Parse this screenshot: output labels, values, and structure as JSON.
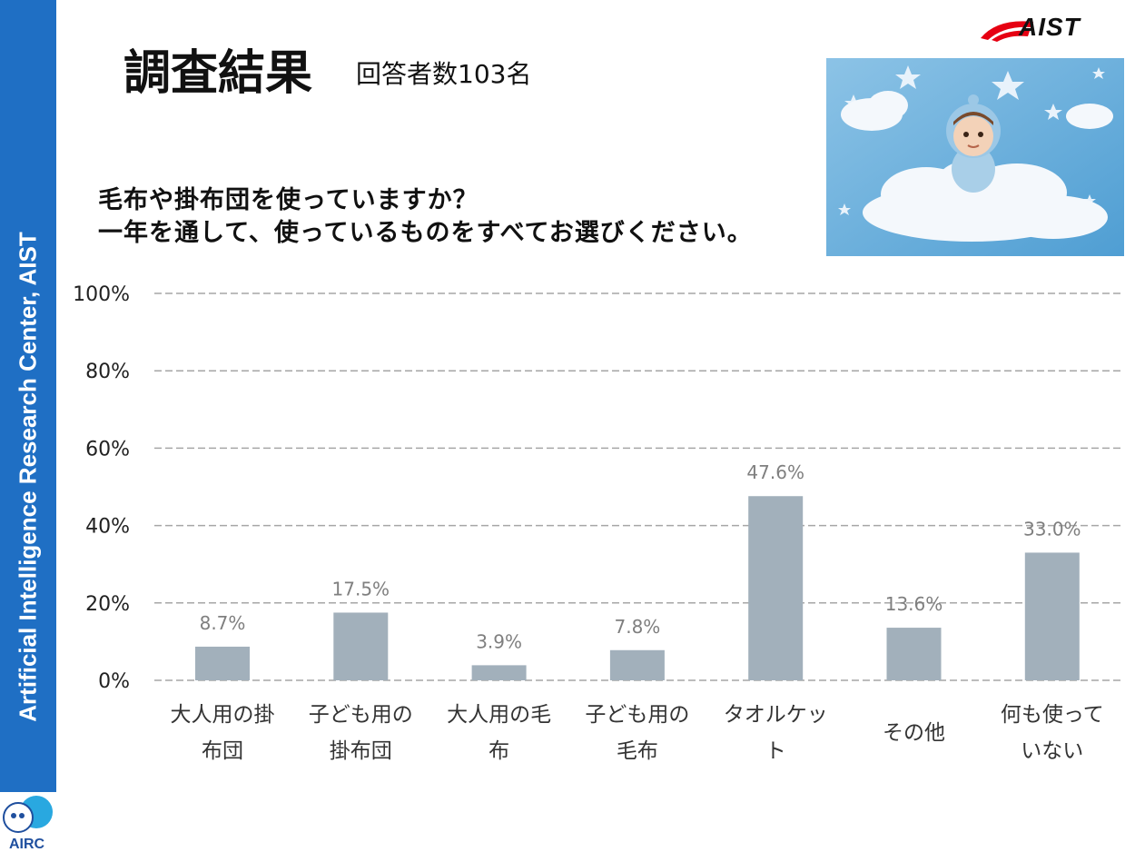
{
  "sidebar": {
    "text": "Artificial Intelligence Research Center, AIST",
    "color": "#1f6fc4"
  },
  "logos": {
    "aist": "AIST",
    "airc": "AIRC"
  },
  "header": {
    "title": "調査結果",
    "subtitle": "回答者数103名"
  },
  "question": {
    "line1": "毛布や掛布団を使っていますか？",
    "line2": "一年を通して、使っているものをすべてお選びください。"
  },
  "illustration": {
    "icon": "baby-on-cloud-illustration"
  },
  "chart_data": {
    "type": "bar",
    "categories": [
      [
        "大人用の掛",
        "布団"
      ],
      [
        "子ども用の",
        "掛布団"
      ],
      [
        "大人用の毛",
        "布"
      ],
      [
        "子ども用の",
        "毛布"
      ],
      [
        "タオルケッ",
        "ト"
      ],
      [
        "その他"
      ],
      [
        "何も使って",
        "いない"
      ]
    ],
    "values": [
      8.7,
      17.5,
      3.9,
      7.8,
      47.6,
      13.6,
      33.0
    ],
    "data_labels": [
      "8.7%",
      "17.5%",
      "3.9%",
      "7.8%",
      "47.6%",
      "13.6%",
      "33.0%"
    ],
    "ylim": [
      0,
      100
    ],
    "yticks": [
      0,
      20,
      40,
      60,
      80,
      100
    ],
    "ytick_labels": [
      "0%",
      "20%",
      "40%",
      "60%",
      "80%",
      "100%"
    ],
    "grid": true,
    "bar_color": "#a2b0bb",
    "grid_color": "#a6a6a6"
  }
}
